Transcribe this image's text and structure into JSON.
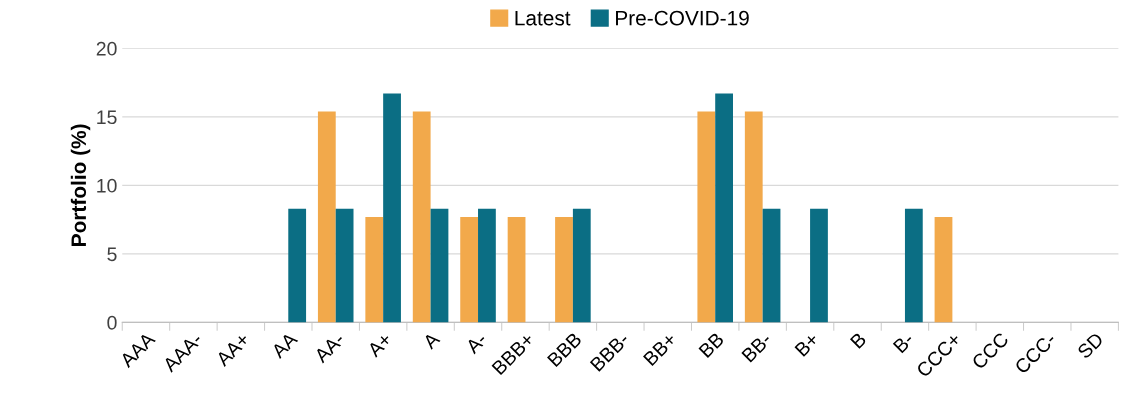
{
  "chart_data": {
    "type": "bar",
    "ylabel": "Portfolio (%)",
    "categories": [
      "AAA",
      "AAA-",
      "AA+",
      "AA",
      "AA-",
      "A+",
      "A",
      "A-",
      "BBB+",
      "BBB",
      "BBB-",
      "BB+",
      "BB",
      "BB-",
      "B+",
      "B",
      "B-",
      "CCC+",
      "CCC",
      "CCC-",
      "SD"
    ],
    "series": [
      {
        "name": "Latest",
        "color": "#f2a94b",
        "values": [
          0,
          0,
          0,
          0,
          15.4,
          7.7,
          15.4,
          7.7,
          7.7,
          7.7,
          0,
          0,
          15.4,
          15.4,
          0,
          0,
          0,
          7.7,
          0,
          0,
          0
        ]
      },
      {
        "name": "Pre-COVID-19",
        "color": "#0b6e84",
        "values": [
          0,
          0,
          0,
          8.3,
          8.3,
          16.7,
          8.3,
          8.3,
          0,
          8.3,
          0,
          0,
          16.7,
          8.3,
          8.3,
          0,
          8.3,
          0,
          0,
          0,
          0
        ]
      }
    ],
    "ylim": [
      0,
      20
    ],
    "yticks": [
      0,
      5,
      10,
      15,
      20
    ],
    "grid": "y",
    "legend": "top"
  }
}
